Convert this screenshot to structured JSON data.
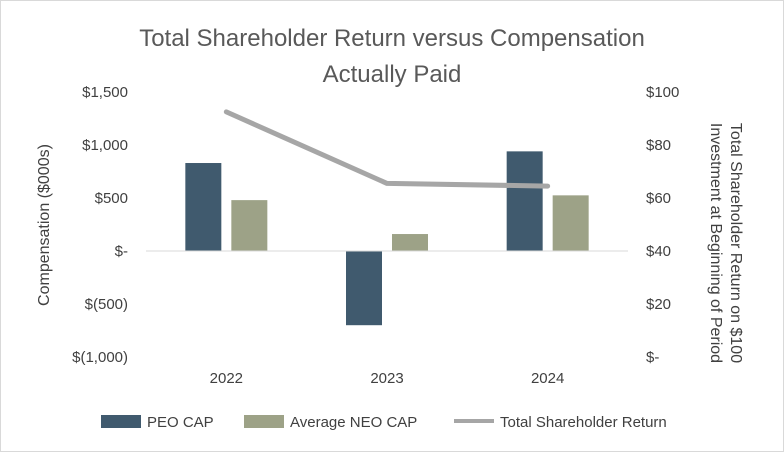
{
  "chart_data": {
    "type": "bar",
    "title": [
      "Total Shareholder Return versus Compensation",
      "Actually Paid"
    ],
    "categories": [
      "2022",
      "2023",
      "2024"
    ],
    "series": [
      {
        "name": "PEO CAP",
        "kind": "bar",
        "axis": "left",
        "color": "#405a6e",
        "values": [
          830,
          -700,
          940
        ]
      },
      {
        "name": "Average NEO CAP",
        "kind": "bar",
        "axis": "left",
        "color": "#9da287",
        "values": [
          480,
          160,
          525
        ]
      },
      {
        "name": "Total Shareholder Return",
        "kind": "line",
        "axis": "right",
        "color": "#a6a6a6",
        "values": [
          92.5,
          65.5,
          64.5
        ]
      }
    ],
    "y_left": {
      "label": "Compensation ($000s)",
      "ylim": [
        -1000,
        1500
      ],
      "ticks": [
        1500,
        1000,
        500,
        0,
        -500,
        -1000
      ],
      "tick_labels": [
        "$1,500",
        "$1,000",
        "$500",
        "$-",
        "$(500)",
        "$(1,000)"
      ]
    },
    "y_right": {
      "label": [
        "Total Shareholder Return on $100",
        "Investment at Beginning of Period"
      ],
      "ylim": [
        0,
        100
      ],
      "ticks": [
        100,
        80,
        60,
        40,
        20,
        0
      ],
      "tick_labels": [
        "$100",
        "$80",
        "$60",
        "$40",
        "$20",
        "$-"
      ]
    },
    "grid": false,
    "legend": "bottom"
  }
}
